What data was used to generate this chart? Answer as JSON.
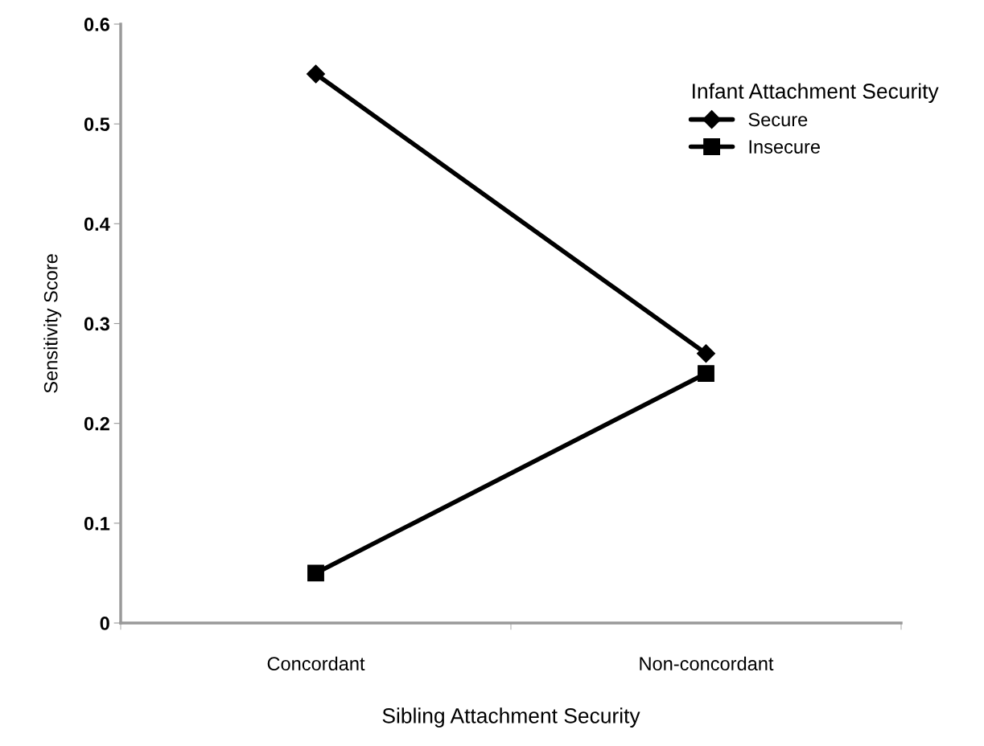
{
  "chart_data": {
    "type": "line",
    "xlabel": "Sibling Attachment Security",
    "ylabel": "Sensitivity Score",
    "categories": [
      "Concordant",
      "Non-concordant"
    ],
    "series": [
      {
        "name": "Secure",
        "color": "#000000",
        "marker": "diamond",
        "values": [
          0.55,
          0.27
        ]
      },
      {
        "name": "Insecure",
        "color": "#000000",
        "marker": "square",
        "values": [
          0.05,
          0.25
        ]
      }
    ],
    "ylim": [
      0,
      0.6
    ],
    "yticks": [
      0,
      0.1,
      0.2,
      0.3,
      0.4,
      0.5,
      0.6
    ],
    "legend": "top right",
    "legend_title": "Infant Attachment Security",
    "grid": false,
    "line_style": "solid"
  }
}
